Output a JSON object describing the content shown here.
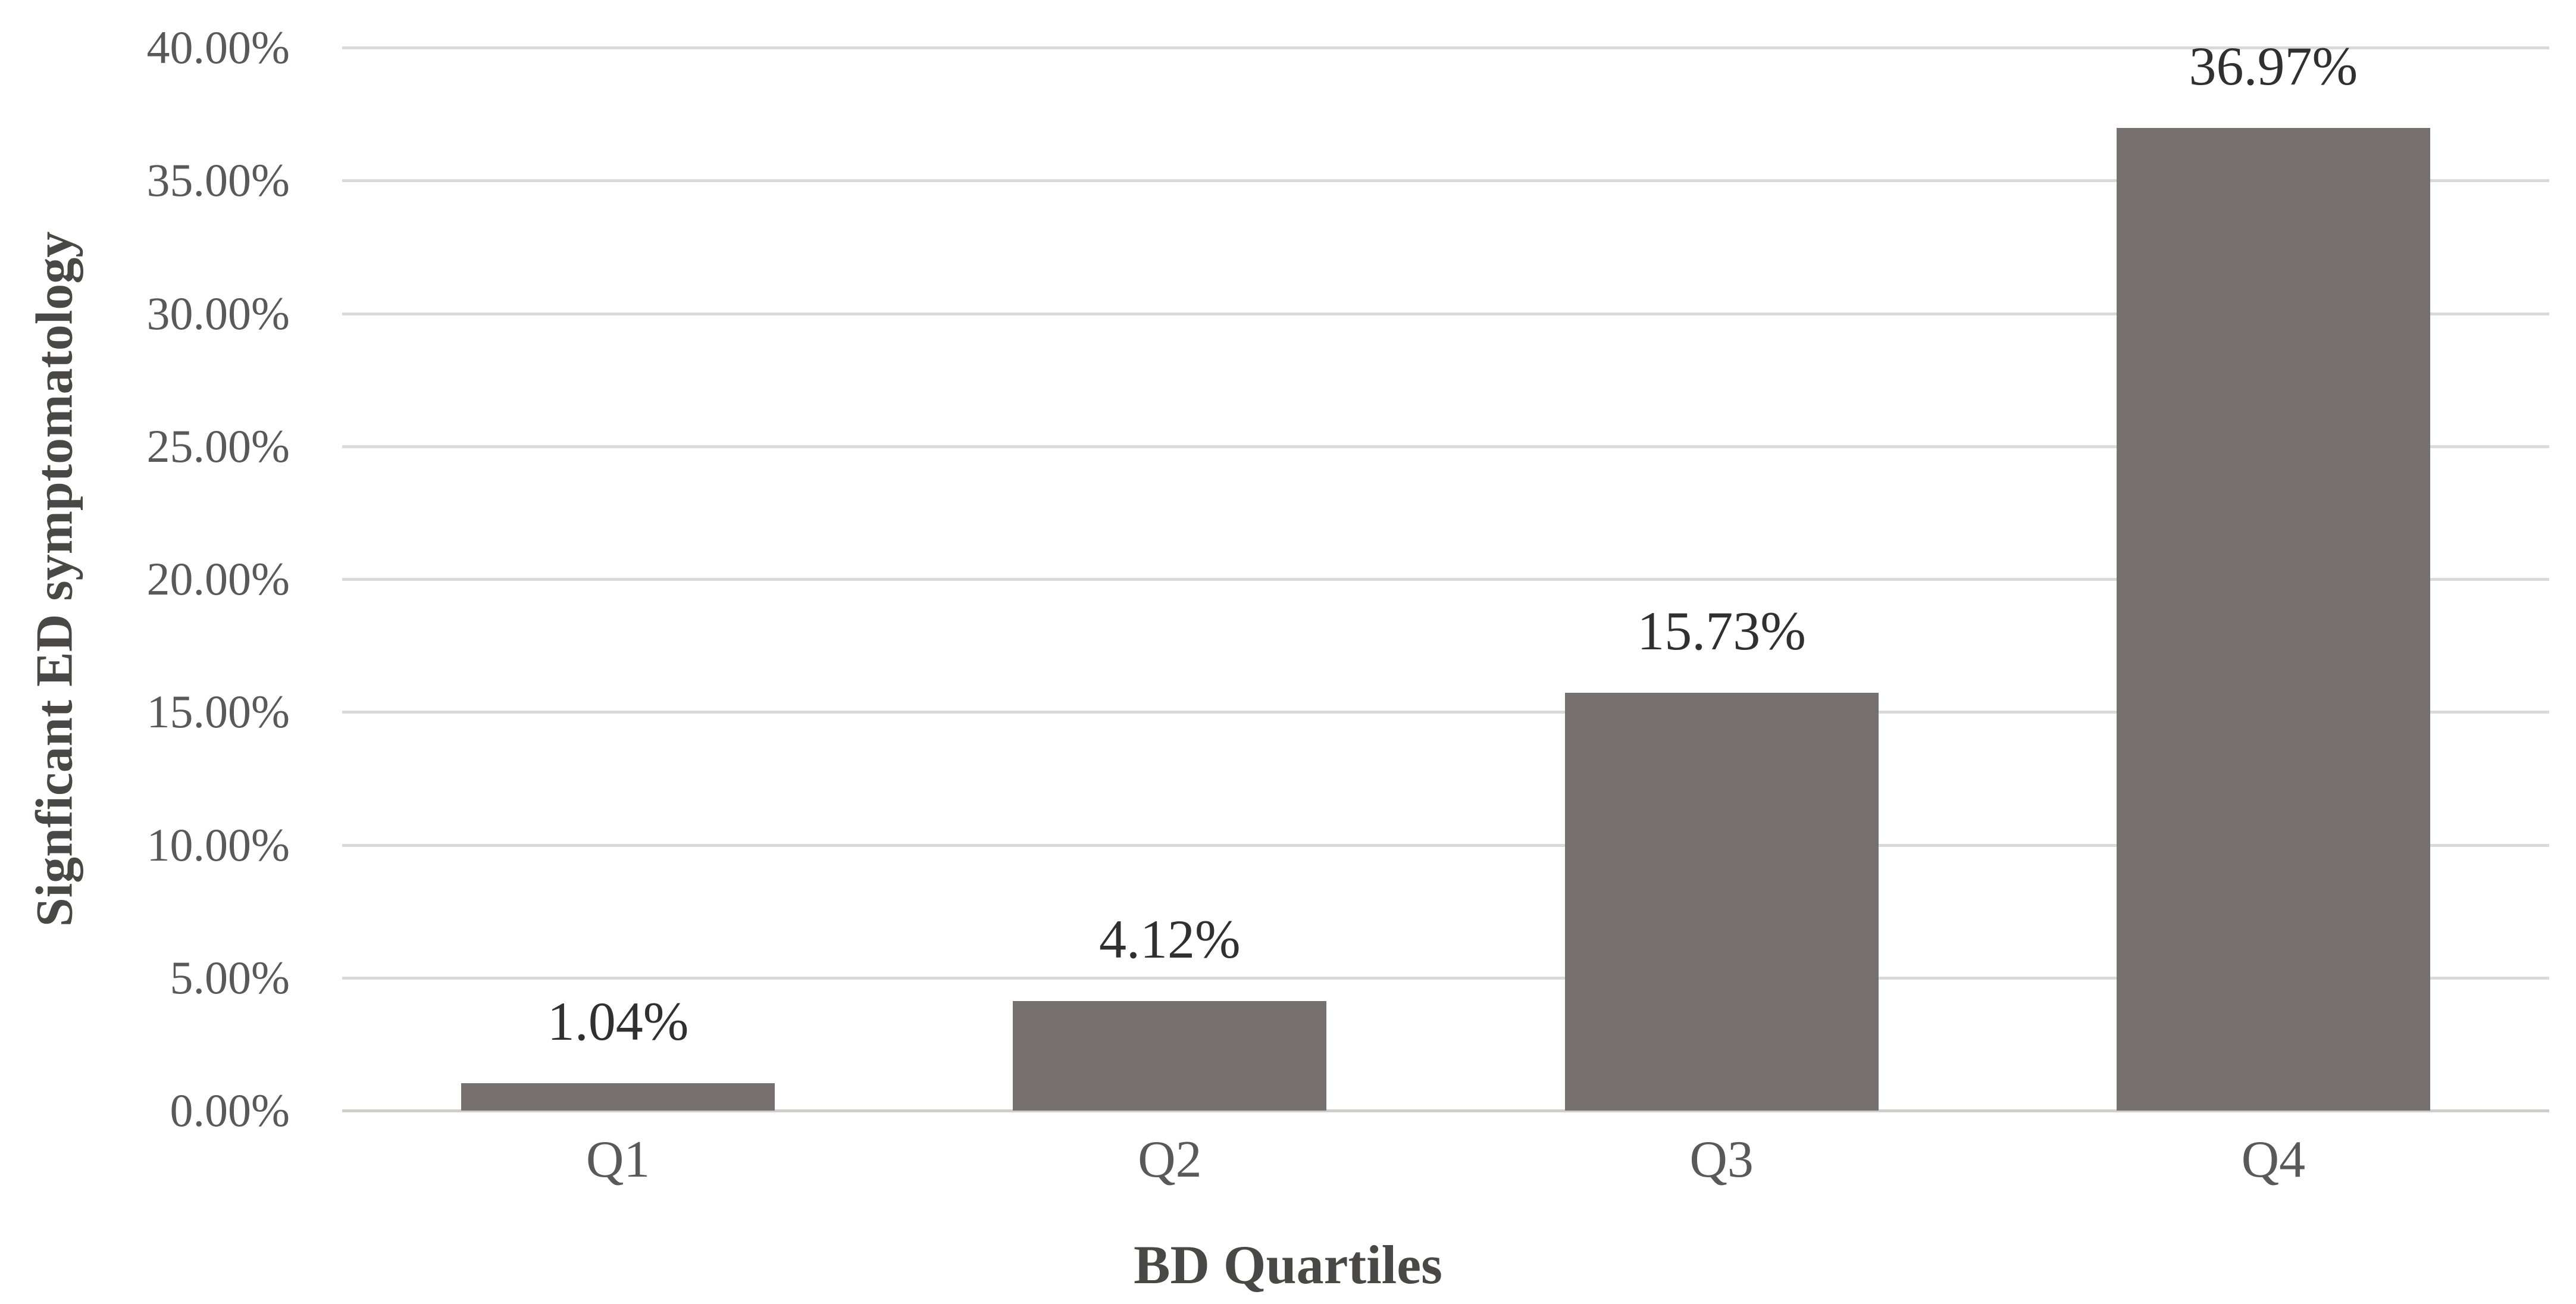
{
  "chart_data": {
    "type": "bar",
    "title": "",
    "categories": [
      "Q1",
      "Q2",
      "Q3",
      "Q4"
    ],
    "values": [
      1.04,
      4.12,
      15.73,
      36.97
    ],
    "value_labels": [
      "1.04%",
      "4.12%",
      "15.73%",
      "36.97%"
    ],
    "xlabel": "BD Quartiles",
    "ylabel": "Signficant ED symptomatology",
    "ylim": [
      0,
      40
    ],
    "ytick_values": [
      0,
      5,
      10,
      15,
      20,
      25,
      30,
      35,
      40
    ],
    "ytick_labels": [
      "0.00%",
      "5.00%",
      "10.00%",
      "15.00%",
      "20.00%",
      "25.00%",
      "30.00%",
      "35.00%",
      "40.00%"
    ],
    "grid": "horizontal",
    "legend": "none",
    "colors": {
      "bar": "#76716f",
      "gridline": "#dadada",
      "axis_line": "#d0cecd",
      "tick_label": "#595959",
      "data_label": "#303030",
      "axis_title": "#4a4747",
      "background": "#ffffff"
    }
  }
}
